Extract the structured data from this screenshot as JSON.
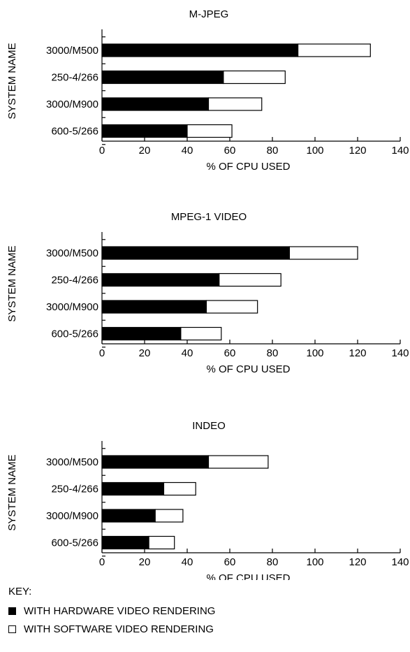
{
  "chart_data": [
    {
      "type": "bar",
      "orientation": "horizontal",
      "stacked": true,
      "title": "M-JPEG",
      "xlabel": "% OF CPU USED",
      "ylabel": "SYSTEM NAME",
      "xlim": [
        0,
        140
      ],
      "xticks": [
        "0",
        "20",
        "40",
        "60",
        "80",
        "100",
        "120",
        "140"
      ],
      "categories": [
        "3000/M500",
        "250-4/266",
        "3000/M900",
        "600-5/266"
      ],
      "series": [
        {
          "key": "hardware",
          "values": [
            92,
            57,
            50,
            40
          ]
        },
        {
          "key": "software",
          "values": [
            34,
            29,
            25,
            21
          ]
        }
      ]
    },
    {
      "type": "bar",
      "orientation": "horizontal",
      "stacked": true,
      "title": "MPEG-1 VIDEO",
      "xlabel": "% OF CPU USED",
      "ylabel": "SYSTEM NAME",
      "xlim": [
        0,
        140
      ],
      "xticks": [
        "0",
        "20",
        "40",
        "60",
        "80",
        "100",
        "120",
        "140"
      ],
      "categories": [
        "3000/M500",
        "250-4/266",
        "3000/M900",
        "600-5/266"
      ],
      "series": [
        {
          "key": "hardware",
          "values": [
            88,
            55,
            49,
            37
          ]
        },
        {
          "key": "software",
          "values": [
            32,
            29,
            24,
            19
          ]
        }
      ]
    },
    {
      "type": "bar",
      "orientation": "horizontal",
      "stacked": true,
      "title": "INDEO",
      "xlabel": "% OF CPU USED",
      "ylabel": "SYSTEM NAME",
      "xlim": [
        0,
        140
      ],
      "xticks": [
        "0",
        "20",
        "40",
        "60",
        "80",
        "100",
        "120",
        "140"
      ],
      "categories": [
        "3000/M500",
        "250-4/266",
        "3000/M900",
        "600-5/266"
      ],
      "series": [
        {
          "key": "hardware",
          "values": [
            50,
            29,
            25,
            22
          ]
        },
        {
          "key": "software",
          "values": [
            28,
            15,
            13,
            12
          ]
        }
      ]
    }
  ],
  "key": {
    "title": "KEY:",
    "hardware_label": "WITH HARDWARE VIDEO RENDERING",
    "software_label": "WITH SOFTWARE VIDEO RENDERING",
    "hardware_color": "#000000",
    "software_color": "#ffffff"
  }
}
